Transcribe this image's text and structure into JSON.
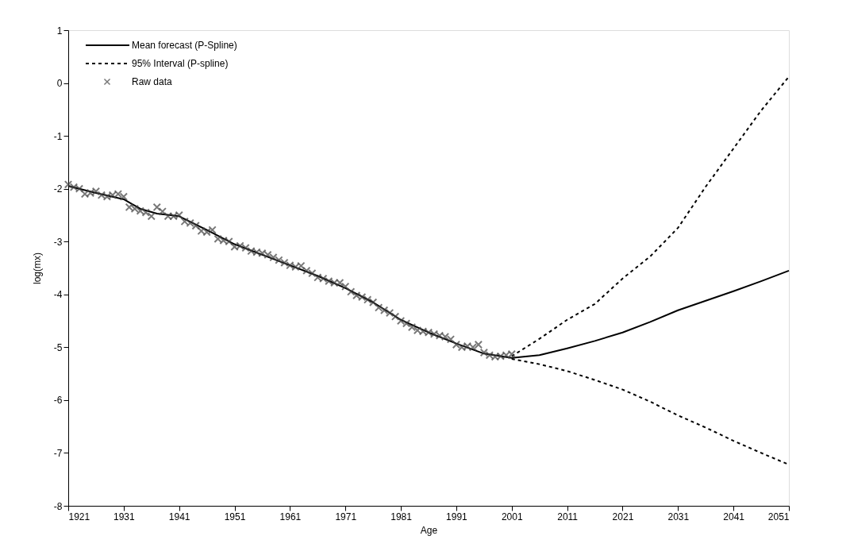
{
  "chart_data": {
    "type": "line",
    "xlabel": "Age",
    "ylabel": "log(mx)",
    "xlim": [
      1921,
      2051
    ],
    "xticks": [
      1921,
      1931,
      1941,
      1951,
      1961,
      1971,
      1981,
      1991,
      2001,
      2011,
      2021,
      2031,
      2041,
      2051
    ],
    "ylim": [
      -8,
      1
    ],
    "yticks": [
      -8,
      -7,
      -6,
      -5,
      -4,
      -3,
      -2,
      -1,
      0,
      1
    ],
    "grid": false,
    "legend": "top left",
    "series": [
      {
        "name": "Mean forecast (P-Spline)",
        "color": "#000000",
        "line_style": "solid",
        "marker": "none",
        "x": [
          1921,
          1926,
          1931,
          1934,
          1937,
          1941,
          1946,
          1951,
          1956,
          1961,
          1966,
          1971,
          1976,
          1981,
          1986,
          1991,
          1996,
          2001,
          2006,
          2011,
          2016,
          2021,
          2026,
          2031,
          2036,
          2041,
          2046,
          2051
        ],
        "values": [
          -1.95,
          -2.08,
          -2.2,
          -2.38,
          -2.47,
          -2.52,
          -2.78,
          -3.05,
          -3.25,
          -3.45,
          -3.65,
          -3.88,
          -4.15,
          -4.48,
          -4.72,
          -4.93,
          -5.12,
          -5.2,
          -5.15,
          -5.02,
          -4.88,
          -4.72,
          -4.52,
          -4.3,
          -4.12,
          -3.94,
          -3.75,
          -3.55
        ]
      },
      {
        "name": "95% Interval (P-spline)",
        "color": "#000000",
        "line_style": "dashed",
        "marker": "none",
        "x": [
          2001,
          2006,
          2011,
          2016,
          2021,
          2026,
          2031,
          2036,
          2041,
          2046,
          2051
        ],
        "values": [
          -5.17,
          -4.84,
          -4.48,
          -4.18,
          -3.7,
          -3.28,
          -2.74,
          -1.96,
          -1.24,
          -0.52,
          0.12
        ]
      },
      {
        "color": "#000000",
        "line_style": "dashed",
        "marker": "none",
        "x": [
          2001,
          2006,
          2011,
          2016,
          2021,
          2026,
          2031,
          2036,
          2041,
          2046,
          2051
        ],
        "values": [
          -5.22,
          -5.32,
          -5.45,
          -5.62,
          -5.8,
          -6.03,
          -6.29,
          -6.52,
          -6.77,
          -7.0,
          -7.22
        ]
      },
      {
        "name": "Raw data",
        "type": "scatter",
        "color": "#404040",
        "marker": "cross",
        "x": [
          1921,
          1922,
          1923,
          1924,
          1925,
          1926,
          1927,
          1928,
          1929,
          1930,
          1931,
          1932,
          1933,
          1934,
          1935,
          1936,
          1937,
          1938,
          1939,
          1940,
          1941,
          1942,
          1943,
          1944,
          1945,
          1946,
          1947,
          1948,
          1949,
          1950,
          1951,
          1952,
          1953,
          1954,
          1955,
          1956,
          1957,
          1958,
          1959,
          1960,
          1961,
          1962,
          1963,
          1964,
          1965,
          1966,
          1967,
          1968,
          1969,
          1970,
          1971,
          1972,
          1973,
          1974,
          1975,
          1976,
          1977,
          1978,
          1979,
          1980,
          1981,
          1982,
          1983,
          1984,
          1985,
          1986,
          1987,
          1988,
          1989,
          1990,
          1991,
          1992,
          1993,
          1994,
          1995,
          1996,
          1997,
          1998,
          1999,
          2000,
          2001
        ],
        "values": [
          -1.92,
          -1.97,
          -2.0,
          -2.1,
          -2.08,
          -2.05,
          -2.12,
          -2.15,
          -2.12,
          -2.1,
          -2.15,
          -2.35,
          -2.38,
          -2.42,
          -2.45,
          -2.52,
          -2.35,
          -2.43,
          -2.52,
          -2.52,
          -2.5,
          -2.62,
          -2.65,
          -2.7,
          -2.8,
          -2.82,
          -2.78,
          -2.95,
          -2.98,
          -3.0,
          -3.1,
          -3.08,
          -3.12,
          -3.18,
          -3.2,
          -3.22,
          -3.25,
          -3.3,
          -3.35,
          -3.4,
          -3.45,
          -3.48,
          -3.46,
          -3.55,
          -3.6,
          -3.68,
          -3.7,
          -3.75,
          -3.78,
          -3.78,
          -3.85,
          -3.95,
          -4.02,
          -4.05,
          -4.1,
          -4.15,
          -4.25,
          -4.3,
          -4.35,
          -4.42,
          -4.5,
          -4.55,
          -4.62,
          -4.68,
          -4.7,
          -4.72,
          -4.75,
          -4.78,
          -4.8,
          -4.85,
          -4.95,
          -5.0,
          -4.98,
          -5.0,
          -4.95,
          -5.1,
          -5.15,
          -5.18,
          -5.17,
          -5.15,
          -5.13
        ]
      }
    ]
  }
}
